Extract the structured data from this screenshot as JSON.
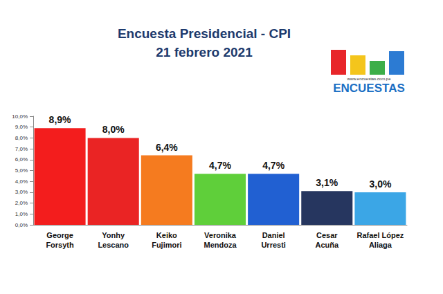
{
  "chart_data": {
    "type": "bar",
    "title": "Encuesta Presidencial - CPI",
    "subtitle": "21 febrero 2021",
    "logo_text": "ENCUESTAS",
    "logo_url": "www.encuestas.com.pe",
    "categories": [
      "George Forsyth",
      "Yonhy Lescano",
      "Keiko Fujimori",
      "Veronika Mendoza",
      "Daniel Urresti",
      "Cesar Acuña",
      "Rafael López Aliaga"
    ],
    "values": [
      8.9,
      8.0,
      6.4,
      4.7,
      4.7,
      3.1,
      3.0
    ],
    "value_labels": [
      "8,9%",
      "8,0%",
      "6,4%",
      "4,7%",
      "4,7%",
      "3,1%",
      "3,0%"
    ],
    "colors": [
      "#f31d1d",
      "#ea2424",
      "#f57b1f",
      "#5fcf3a",
      "#2160d2",
      "#26365f",
      "#3ba6e6"
    ],
    "ylim": [
      0,
      10
    ],
    "yticks": [
      {
        "value": 0,
        "label": "0,0%"
      },
      {
        "value": 1,
        "label": "1,0%"
      },
      {
        "value": 2,
        "label": "2,0%"
      },
      {
        "value": 3,
        "label": "3,0%"
      },
      {
        "value": 4,
        "label": "4,0%"
      },
      {
        "value": 5,
        "label": "5,0%"
      },
      {
        "value": 6,
        "label": "6,0%"
      },
      {
        "value": 7,
        "label": "7,0%"
      },
      {
        "value": 8,
        "label": "8,0%"
      },
      {
        "value": 9,
        "label": "9,0%"
      },
      {
        "value": 10,
        "label": "10,0%"
      }
    ],
    "grid": false,
    "data_labels": true
  }
}
